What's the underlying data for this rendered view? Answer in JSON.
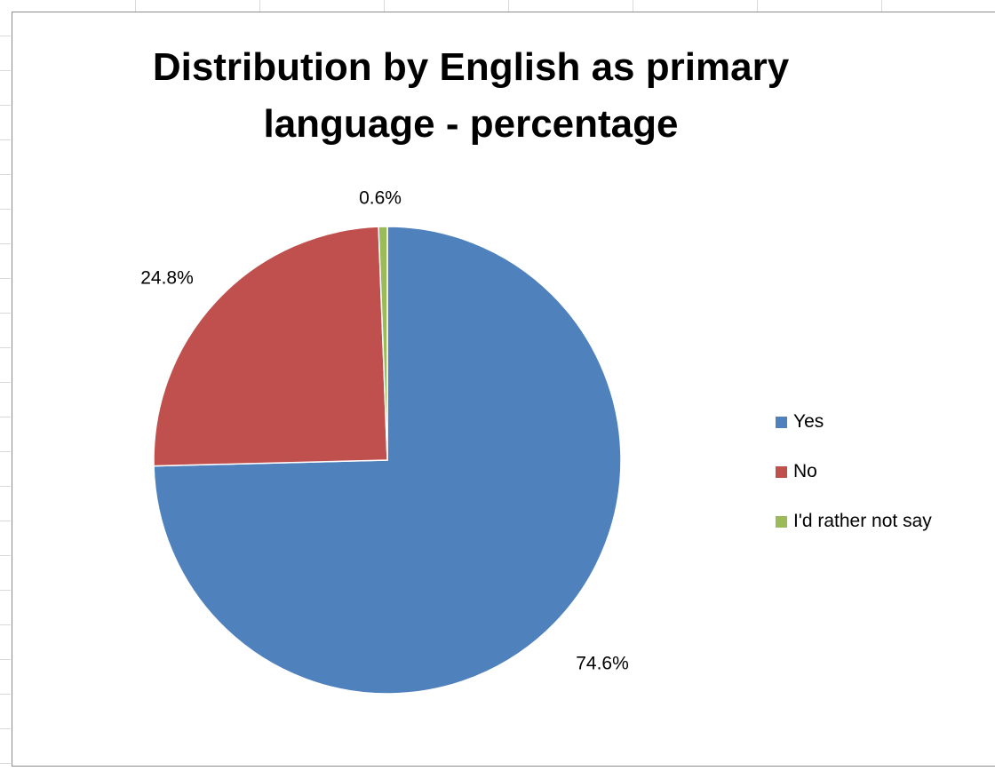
{
  "chart_data": {
    "type": "pie",
    "title": "Distribution by English as primary language - percentage",
    "categories": [
      "Yes",
      "No",
      "I'd rather not say"
    ],
    "values": [
      74.6,
      24.8,
      0.6
    ],
    "labels": [
      "74.6%",
      "24.8%",
      "0.6%"
    ],
    "colors": [
      "#4f81bd",
      "#c0504d",
      "#9bbb59"
    ],
    "legend_position": "right"
  }
}
